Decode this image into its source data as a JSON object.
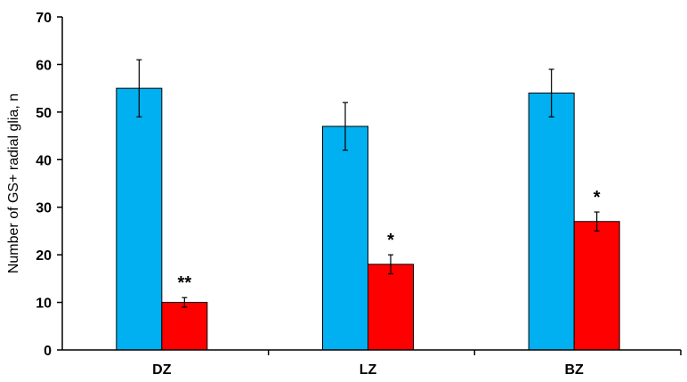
{
  "chart_data": {
    "type": "bar",
    "title": "",
    "xlabel": "",
    "ylabel": "Number of GS+ radial glia, n",
    "categories": [
      "DZ",
      "LZ",
      "BZ"
    ],
    "ylim": [
      0,
      70
    ],
    "yticks": [
      0,
      10,
      20,
      30,
      40,
      50,
      60,
      70
    ],
    "grid": false,
    "legend": "none",
    "series": [
      {
        "color": "#00B0F0",
        "values": [
          55,
          47,
          54
        ],
        "errors": [
          6,
          5,
          5
        ],
        "annotations": [
          "",
          "",
          ""
        ]
      },
      {
        "color": "#FF0000",
        "values": [
          10,
          18,
          27
        ],
        "errors": [
          1,
          2,
          2
        ],
        "annotations": [
          "**",
          "*",
          "*"
        ]
      }
    ]
  }
}
